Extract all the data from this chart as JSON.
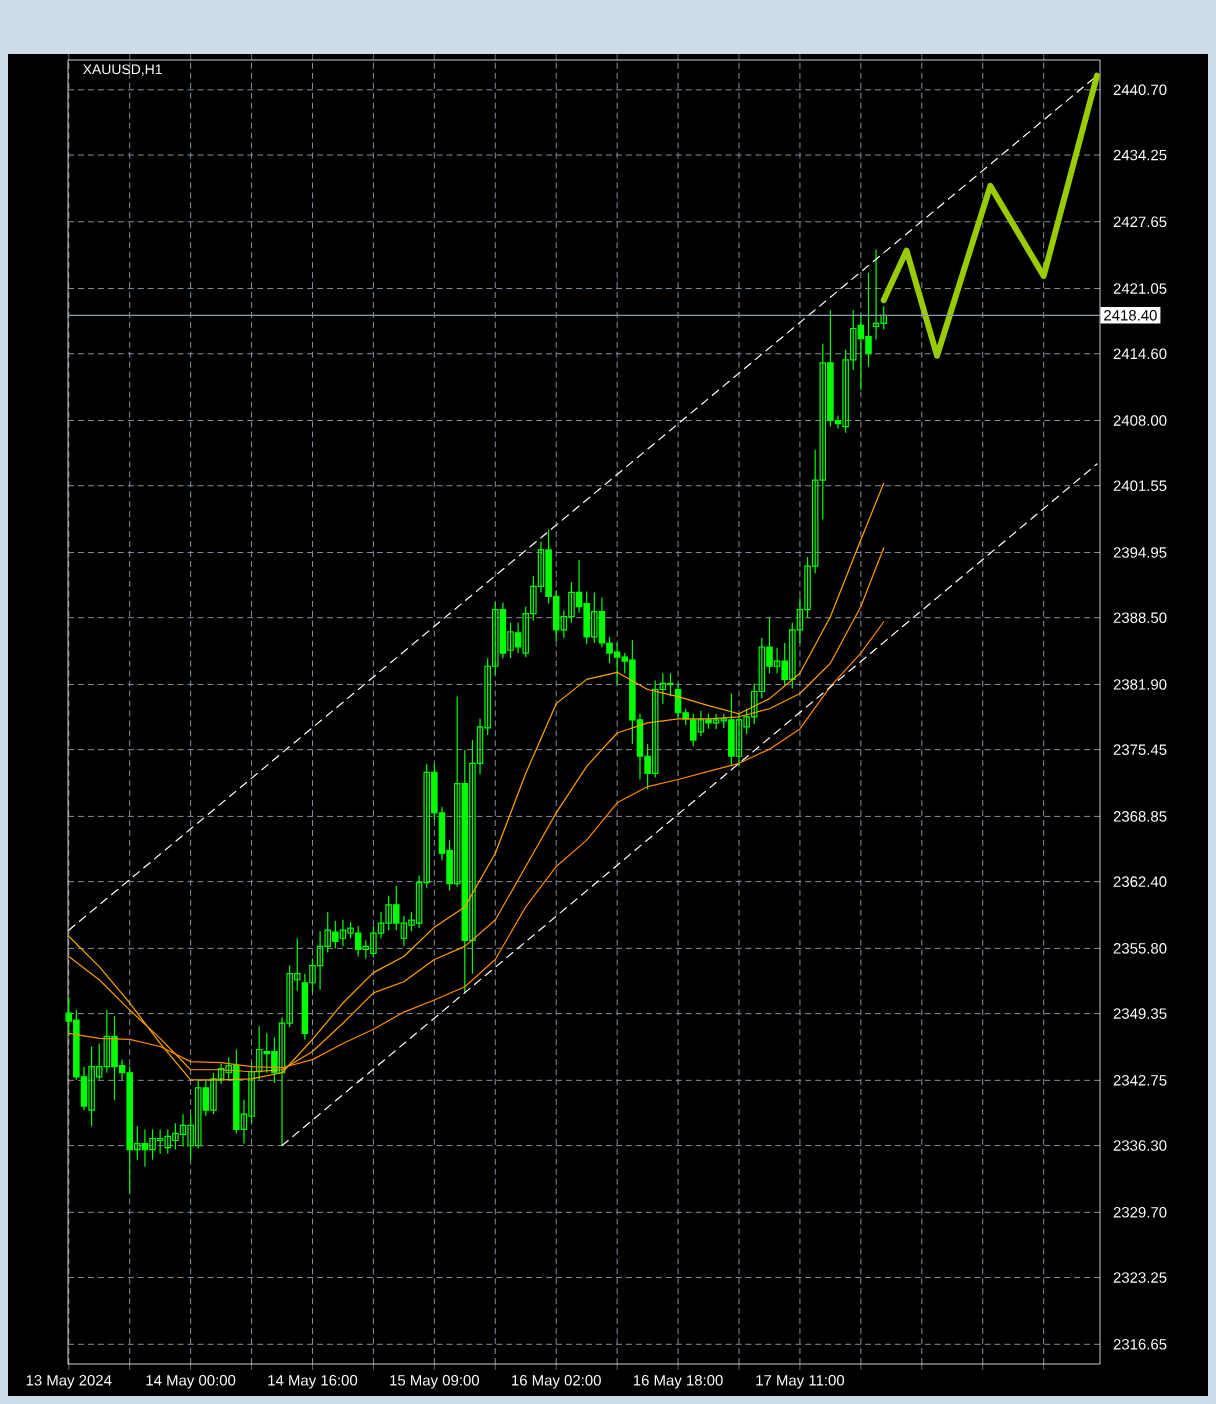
{
  "chart_data": {
    "type": "candlestick",
    "title": "XAUUSD,H1",
    "categories": [
      "13 May 2024",
      null,
      null,
      null,
      null,
      null,
      null,
      null,
      null,
      null,
      null,
      null,
      null,
      null,
      null,
      null,
      "14 May 00:00",
      null,
      null,
      null,
      null,
      null,
      null,
      null,
      null,
      null,
      null,
      null,
      null,
      null,
      null,
      null,
      "14 May 16:00",
      null,
      null,
      null,
      null,
      null,
      null,
      null,
      null,
      null,
      null,
      null,
      null,
      null,
      null,
      null,
      "15 May 09:00",
      null,
      null,
      null,
      null,
      null,
      null,
      null,
      null,
      null,
      null,
      null,
      null,
      null,
      null,
      null,
      "16 May 02:00",
      null,
      null,
      null,
      null,
      null,
      null,
      null,
      null,
      null,
      null,
      null,
      null,
      null,
      null,
      null,
      "16 May 18:00",
      null,
      null,
      null,
      null,
      null,
      null,
      null,
      null,
      null,
      null,
      null,
      null,
      null,
      null,
      null,
      "17 May 11:00",
      null,
      null,
      null,
      null,
      null,
      null,
      null,
      null,
      null,
      null,
      null,
      null,
      null,
      null,
      null,
      null,
      null,
      null,
      null,
      null,
      null,
      null,
      null,
      null,
      null,
      null,
      null,
      null,
      null,
      null,
      null,
      null,
      null,
      null,
      null,
      null,
      null,
      null,
      null
    ],
    "ylim": [
      2314.7,
      2443.65
    ],
    "yticks": [
      {
        "value": 2316.65,
        "label": "2316.65"
      },
      {
        "value": 2323.25,
        "label": "2323.25"
      },
      {
        "value": 2329.7,
        "label": "2329.70"
      },
      {
        "value": 2336.3,
        "label": "2336.30"
      },
      {
        "value": 2342.75,
        "label": "2342.75"
      },
      {
        "value": 2349.35,
        "label": "2349.35"
      },
      {
        "value": 2355.8,
        "label": "2355.80"
      },
      {
        "value": 2362.4,
        "label": "2362.40"
      },
      {
        "value": 2368.85,
        "label": "2368.85"
      },
      {
        "value": 2375.45,
        "label": "2375.45"
      },
      {
        "value": 2381.9,
        "label": "2381.90"
      },
      {
        "value": 2388.5,
        "label": "2388.50"
      },
      {
        "value": 2394.95,
        "label": "2394.95"
      },
      {
        "value": 2401.55,
        "label": "2401.55"
      },
      {
        "value": 2408.0,
        "label": "2408.00"
      },
      {
        "value": 2414.6,
        "label": "2414.60"
      },
      {
        "value": 2421.05,
        "label": "2421.05"
      },
      {
        "value": 2427.65,
        "label": "2427.65"
      },
      {
        "value": 2434.25,
        "label": "2434.25"
      },
      {
        "value": 2440.7,
        "label": "2440.70"
      }
    ],
    "grid": true,
    "ref_lines": [
      {
        "axis": "y",
        "value": 2418.4,
        "label": "2418.40",
        "color": "#8c9cac"
      }
    ],
    "series": [
      {
        "color": "#00ff00",
        "ohlc": [
          [
            2349.4,
            2351.0,
            2347.1,
            2348.6
          ],
          [
            2348.7,
            2349.7,
            2342.8,
            2343.1
          ],
          [
            2343.1,
            2344.1,
            2339.8,
            2340.2
          ],
          [
            2339.8,
            2346.1,
            2338.2,
            2344.1
          ],
          [
            2343.1,
            2346.4,
            2342.8,
            2344.1
          ],
          [
            2344.1,
            2349.7,
            2343.5,
            2347.1
          ],
          [
            2347.1,
            2349.1,
            2340.8,
            2344.1
          ],
          [
            2344.2,
            2344.8,
            2342.8,
            2343.5
          ],
          [
            2343.5,
            2344.1,
            2331.6,
            2335.9
          ],
          [
            2335.9,
            2338.2,
            2334.9,
            2336.5
          ],
          [
            2336.5,
            2337.9,
            2334.2,
            2335.9
          ],
          [
            2335.9,
            2337.9,
            2334.9,
            2337.0
          ],
          [
            2336.8,
            2337.9,
            2335.5,
            2337.0
          ],
          [
            2336.1,
            2337.9,
            2335.5,
            2337.2
          ],
          [
            2336.8,
            2338.5,
            2335.9,
            2337.5
          ],
          [
            2337.4,
            2339.4,
            2336.2,
            2338.3
          ],
          [
            2336.3,
            2339.4,
            2334.9,
            2338.3
          ],
          [
            2336.3,
            2342.8,
            2336.0,
            2342.0
          ],
          [
            2342.0,
            2342.8,
            2339.2,
            2339.8
          ],
          [
            2339.8,
            2343.5,
            2339.4,
            2342.9
          ],
          [
            2342.9,
            2344.4,
            2342.4,
            2343.9
          ],
          [
            2343.5,
            2345.0,
            2342.8,
            2344.2
          ],
          [
            2344.2,
            2345.8,
            2337.5,
            2337.9
          ],
          [
            2337.9,
            2340.8,
            2336.5,
            2339.4
          ],
          [
            2339.2,
            2344.4,
            2338.5,
            2343.6
          ],
          [
            2343.6,
            2348.1,
            2342.8,
            2345.8
          ],
          [
            2345.6,
            2347.4,
            2343.5,
            2345.4
          ],
          [
            2345.6,
            2347.0,
            2342.5,
            2343.5
          ],
          [
            2343.5,
            2349.0,
            2336.3,
            2348.4
          ],
          [
            2348.4,
            2354.1,
            2348.0,
            2353.3
          ],
          [
            2352.7,
            2356.8,
            2351.6,
            2353.3
          ],
          [
            2352.4,
            2353.3,
            2346.8,
            2347.4
          ],
          [
            2352.4,
            2354.8,
            2351.5,
            2354.1
          ],
          [
            2354.1,
            2357.5,
            2351.7,
            2356.0
          ],
          [
            2356.0,
            2359.4,
            2355.4,
            2357.6
          ],
          [
            2357.4,
            2358.5,
            2355.8,
            2356.5
          ],
          [
            2356.8,
            2358.6,
            2356.0,
            2357.6
          ],
          [
            2357.3,
            2358.4,
            2356.8,
            2357.8
          ],
          [
            2357.3,
            2358.0,
            2355.0,
            2355.7
          ],
          [
            2355.7,
            2356.6,
            2354.8,
            2356.0
          ],
          [
            2355.3,
            2358.0,
            2354.9,
            2357.3
          ],
          [
            2357.3,
            2359.4,
            2356.8,
            2358.3
          ],
          [
            2358.3,
            2361.0,
            2357.6,
            2360.1
          ],
          [
            2360.1,
            2362.0,
            2357.6,
            2358.3
          ],
          [
            2356.8,
            2359.0,
            2356.0,
            2358.3
          ],
          [
            2358.1,
            2359.4,
            2357.5,
            2358.6
          ],
          [
            2358.3,
            2363.0,
            2357.8,
            2362.3
          ],
          [
            2362.3,
            2374.0,
            2361.8,
            2373.2
          ],
          [
            2373.2,
            2374.0,
            2368.5,
            2369.2
          ],
          [
            2369.2,
            2369.8,
            2364.5,
            2365.2
          ],
          [
            2365.5,
            2366.5,
            2361.5,
            2362.2
          ],
          [
            2362.2,
            2380.7,
            2361.9,
            2372.1
          ],
          [
            2372.1,
            2375.4,
            2351.4,
            2356.6
          ],
          [
            2356.6,
            2376.4,
            2353.3,
            2374.1
          ],
          [
            2374.1,
            2378.5,
            2373.0,
            2377.7
          ],
          [
            2377.6,
            2384.5,
            2376.9,
            2383.7
          ],
          [
            2383.7,
            2390.0,
            2382.9,
            2389.3
          ],
          [
            2389.3,
            2390.0,
            2384.5,
            2385.0
          ],
          [
            2385.3,
            2388.0,
            2384.5,
            2387.1
          ],
          [
            2387.0,
            2388.0,
            2385.0,
            2385.6
          ],
          [
            2385.0,
            2389.6,
            2384.6,
            2388.9
          ],
          [
            2388.9,
            2392.6,
            2388.2,
            2391.6
          ],
          [
            2391.6,
            2396.0,
            2391.0,
            2395.2
          ],
          [
            2395.2,
            2397.2,
            2389.9,
            2390.6
          ],
          [
            2390.6,
            2391.2,
            2386.2,
            2387.3
          ],
          [
            2387.3,
            2389.2,
            2386.5,
            2388.6
          ],
          [
            2388.6,
            2392.0,
            2388.0,
            2391.0
          ],
          [
            2391.0,
            2394.2,
            2389.0,
            2389.6
          ],
          [
            2389.9,
            2391.1,
            2385.9,
            2386.6
          ],
          [
            2386.6,
            2391.0,
            2386.0,
            2389.1
          ],
          [
            2389.1,
            2390.5,
            2385.6,
            2386.0
          ],
          [
            2386.0,
            2386.6,
            2384.0,
            2385.0
          ],
          [
            2385.1,
            2386.0,
            2382.0,
            2384.6
          ],
          [
            2384.6,
            2385.0,
            2383.0,
            2384.2
          ],
          [
            2384.3,
            2386.3,
            2376.0,
            2378.4
          ],
          [
            2378.4,
            2379.0,
            2372.5,
            2374.8
          ],
          [
            2374.8,
            2376.0,
            2371.5,
            2373.1
          ],
          [
            2373.1,
            2382.3,
            2372.7,
            2381.4
          ],
          [
            2381.4,
            2383.0,
            2380.0,
            2382.0
          ],
          [
            2381.9,
            2383.0,
            2380.7,
            2382.0
          ],
          [
            2381.4,
            2382.0,
            2378.5,
            2379.1
          ],
          [
            2379.1,
            2379.5,
            2377.9,
            2378.5
          ],
          [
            2378.4,
            2379.0,
            2375.8,
            2376.4
          ],
          [
            2377.2,
            2379.3,
            2376.8,
            2378.4
          ],
          [
            2378.4,
            2379.0,
            2377.5,
            2378.1
          ],
          [
            2378.1,
            2379.0,
            2377.5,
            2378.4
          ],
          [
            2378.3,
            2379.0,
            2377.6,
            2378.5
          ],
          [
            2378.4,
            2381.0,
            2373.8,
            2374.8
          ],
          [
            2374.8,
            2379.0,
            2373.8,
            2378.4
          ],
          [
            2377.7,
            2379.5,
            2377.0,
            2378.7
          ],
          [
            2378.7,
            2382.0,
            2378.0,
            2381.2
          ],
          [
            2381.2,
            2386.5,
            2380.5,
            2385.6
          ],
          [
            2385.6,
            2388.5,
            2383.0,
            2383.7
          ],
          [
            2383.7,
            2385.5,
            2383.0,
            2384.2
          ],
          [
            2384.2,
            2386.0,
            2381.8,
            2382.4
          ],
          [
            2382.4,
            2388.0,
            2381.5,
            2387.3
          ],
          [
            2387.3,
            2390.5,
            2386.0,
            2389.3
          ],
          [
            2389.3,
            2394.5,
            2388.5,
            2393.6
          ],
          [
            2393.6,
            2405.1,
            2392.9,
            2402.1
          ],
          [
            2402.1,
            2415.6,
            2398.2,
            2413.7
          ],
          [
            2413.7,
            2418.9,
            2407.4,
            2408.0
          ],
          [
            2408.0,
            2408.5,
            2407.2,
            2407.7
          ],
          [
            2407.4,
            2415.0,
            2406.8,
            2414.0
          ],
          [
            2414.0,
            2418.9,
            2413.0,
            2417.1
          ],
          [
            2417.4,
            2418.5,
            2411.0,
            2416.1
          ],
          [
            2416.3,
            2422.6,
            2413.3,
            2414.6
          ],
          [
            2417.3,
            2424.9,
            2416.0,
            2417.6
          ],
          [
            2417.6,
            2419.3,
            2417.0,
            2418.4
          ],
          null,
          null,
          null,
          null,
          null,
          null,
          null,
          null,
          null,
          null,
          null,
          null,
          null,
          null,
          null,
          null,
          null,
          null,
          null,
          null,
          null,
          null,
          null,
          null,
          null,
          null,
          null,
          null
        ]
      },
      {
        "type": "line",
        "color": "#ffa500",
        "values": [
          2357.0,
          null,
          null,
          null,
          2354.0,
          null,
          null,
          null,
          2350.4,
          null,
          null,
          null,
          2346.4,
          null,
          null,
          null,
          2342.8,
          null,
          null,
          null,
          2342.8,
          null,
          null,
          null,
          2342.9,
          null,
          null,
          null,
          2343.5,
          null,
          null,
          null,
          2346.8,
          null,
          null,
          null,
          2350.4,
          null,
          null,
          null,
          2353.4,
          null,
          null,
          null,
          2355.0,
          null,
          null,
          null,
          2357.9,
          null,
          null,
          null,
          2359.9,
          null,
          null,
          null,
          2365.2,
          null,
          null,
          null,
          2373.1,
          null,
          null,
          null,
          2380.0,
          null,
          null,
          null,
          2382.4,
          null,
          null,
          null,
          2383.1,
          null,
          null,
          null,
          2381.4,
          null,
          null,
          null,
          2380.7,
          null,
          null,
          null,
          2379.8,
          null,
          null,
          null,
          2379.0,
          null,
          null,
          null,
          2380.5,
          null,
          null,
          null,
          2383.0,
          null,
          null,
          null,
          2388.6,
          null,
          null,
          null,
          2396.2,
          null,
          null,
          2401.8,
          null,
          null,
          null,
          null,
          null,
          null,
          null,
          null,
          null,
          null,
          null,
          null,
          null,
          null,
          null,
          null,
          null,
          null,
          null,
          null,
          null,
          null,
          null,
          null,
          null,
          null,
          null,
          null
        ]
      },
      {
        "type": "line",
        "color": "#ff9900",
        "values": [
          2355.0,
          null,
          null,
          null,
          2352.7,
          null,
          null,
          null,
          2349.7,
          null,
          null,
          null,
          2346.9,
          null,
          null,
          null,
          2343.8,
          null,
          null,
          null,
          2343.8,
          null,
          null,
          null,
          2343.6,
          null,
          null,
          null,
          2343.8,
          null,
          null,
          null,
          2345.6,
          null,
          null,
          null,
          2348.4,
          null,
          null,
          null,
          2351.4,
          null,
          null,
          null,
          2352.5,
          null,
          null,
          null,
          2354.7,
          null,
          null,
          null,
          2356.0,
          null,
          null,
          null,
          2358.6,
          null,
          null,
          null,
          2363.9,
          null,
          null,
          null,
          2369.2,
          null,
          null,
          null,
          2373.8,
          null,
          null,
          null,
          2377.1,
          null,
          null,
          null,
          2378.1,
          null,
          null,
          null,
          2378.5,
          null,
          null,
          null,
          2378.5,
          null,
          null,
          null,
          2378.7,
          null,
          null,
          null,
          2379.5,
          null,
          null,
          null,
          2381.0,
          null,
          null,
          null,
          2384.0,
          null,
          null,
          null,
          2389.6,
          null,
          null,
          2395.4,
          null,
          null,
          null,
          null,
          null,
          null,
          null,
          null,
          null,
          null,
          null,
          null,
          null,
          null,
          null,
          null,
          null,
          null,
          null,
          null,
          null,
          null,
          null,
          null,
          null,
          null,
          null,
          null
        ]
      },
      {
        "type": "line",
        "color": "#ff8800",
        "values": [
          2347.4,
          null,
          null,
          null,
          2346.9,
          null,
          null,
          null,
          2346.8,
          null,
          null,
          null,
          2346.1,
          null,
          null,
          null,
          2344.6,
          null,
          null,
          null,
          2344.5,
          null,
          null,
          null,
          2344.1,
          null,
          null,
          null,
          2344.0,
          null,
          null,
          null,
          2344.8,
          null,
          null,
          null,
          2346.4,
          null,
          null,
          null,
          2347.8,
          null,
          null,
          null,
          2349.5,
          null,
          null,
          null,
          2350.7,
          null,
          null,
          null,
          2352.0,
          null,
          null,
          null,
          2354.7,
          null,
          null,
          null,
          2359.9,
          null,
          null,
          null,
          2363.9,
          null,
          null,
          null,
          2366.5,
          null,
          null,
          null,
          2370.2,
          null,
          null,
          null,
          2371.8,
          null,
          null,
          null,
          2372.5,
          null,
          null,
          null,
          2373.3,
          null,
          null,
          null,
          2374.1,
          null,
          null,
          null,
          2375.5,
          null,
          null,
          null,
          2377.5,
          null,
          null,
          null,
          2381.7,
          null,
          null,
          null,
          2385.0,
          null,
          null,
          2388.1,
          null,
          null,
          null,
          null,
          null,
          null,
          null,
          null,
          null,
          null,
          null,
          null,
          null,
          null,
          null,
          null,
          null,
          null,
          null,
          null,
          null,
          null,
          null,
          null,
          null,
          null,
          null,
          null
        ]
      },
      {
        "type": "line",
        "color": "#ffffff",
        "line_style": "dashed",
        "values": [
          2357.6,
          null,
          null,
          null,
          null,
          null,
          null,
          null,
          null,
          null,
          null,
          null,
          null,
          null,
          null,
          null,
          null,
          null,
          null,
          null,
          null,
          null,
          null,
          null,
          null,
          null,
          null,
          null,
          null,
          null,
          null,
          null,
          null,
          null,
          null,
          null,
          null,
          null,
          null,
          null,
          null,
          null,
          null,
          null,
          null,
          null,
          null,
          null,
          null,
          null,
          null,
          null,
          null,
          null,
          null,
          null,
          null,
          null,
          null,
          null,
          null,
          null,
          null,
          null,
          null,
          null,
          null,
          null,
          null,
          null,
          null,
          null,
          null,
          null,
          null,
          null,
          null,
          null,
          null,
          null,
          null,
          null,
          null,
          null,
          null,
          null,
          null,
          null,
          null,
          null,
          null,
          null,
          null,
          null,
          null,
          null,
          null,
          null,
          null,
          null,
          null,
          null,
          null,
          null,
          null,
          null,
          null,
          null,
          null,
          null,
          null,
          null,
          null,
          null,
          null,
          null,
          null,
          null,
          null,
          null,
          null,
          null,
          null,
          null,
          null,
          null,
          null,
          null,
          null,
          null,
          null,
          null,
          null,
          null,
          null,
          2442.1
        ]
      },
      {
        "type": "line",
        "color": "#ffffff",
        "line_style": "dashed",
        "values": [
          null,
          null,
          null,
          null,
          null,
          null,
          null,
          null,
          null,
          null,
          null,
          null,
          null,
          null,
          null,
          null,
          null,
          null,
          null,
          null,
          null,
          null,
          null,
          null,
          null,
          null,
          null,
          null,
          2336.3,
          null,
          null,
          null,
          null,
          null,
          null,
          null,
          null,
          null,
          null,
          null,
          null,
          null,
          null,
          null,
          null,
          null,
          null,
          null,
          null,
          null,
          null,
          null,
          null,
          null,
          null,
          null,
          null,
          null,
          null,
          null,
          null,
          null,
          null,
          null,
          null,
          null,
          null,
          null,
          null,
          null,
          null,
          null,
          null,
          null,
          null,
          null,
          null,
          null,
          null,
          null,
          null,
          null,
          null,
          null,
          null,
          null,
          null,
          null,
          null,
          null,
          null,
          null,
          null,
          null,
          null,
          null,
          null,
          null,
          null,
          null,
          null,
          null,
          null,
          null,
          null,
          null,
          null,
          null,
          null,
          null,
          null,
          null,
          null,
          null,
          null,
          null,
          null,
          null,
          null,
          null,
          null,
          null,
          null,
          null,
          null,
          null,
          null,
          null,
          null,
          null,
          null,
          null,
          null,
          null,
          null,
          2403.7
        ]
      },
      {
        "type": "line",
        "color": "#99cc00",
        "line_style": "solid",
        "values": [
          null,
          null,
          null,
          null,
          null,
          null,
          null,
          null,
          null,
          null,
          null,
          null,
          null,
          null,
          null,
          null,
          null,
          null,
          null,
          null,
          null,
          null,
          null,
          null,
          null,
          null,
          null,
          null,
          null,
          null,
          null,
          null,
          null,
          null,
          null,
          null,
          null,
          null,
          null,
          null,
          null,
          null,
          null,
          null,
          null,
          null,
          null,
          null,
          null,
          null,
          null,
          null,
          null,
          null,
          null,
          null,
          null,
          null,
          null,
          null,
          null,
          null,
          null,
          null,
          null,
          null,
          null,
          null,
          null,
          null,
          null,
          null,
          null,
          null,
          null,
          null,
          null,
          null,
          null,
          null,
          null,
          null,
          null,
          null,
          null,
          null,
          null,
          null,
          null,
          null,
          null,
          null,
          null,
          null,
          null,
          null,
          null,
          null,
          null,
          null,
          null,
          null,
          null,
          null,
          null,
          null,
          null,
          2419.9,
          null,
          null,
          2424.8,
          null,
          null,
          null,
          2414.4,
          null,
          null,
          null,
          null,
          null,
          null,
          2431.2,
          null,
          null,
          null,
          null,
          null,
          null,
          2422.3,
          null,
          null,
          null,
          null,
          null,
          null,
          2442.1
        ]
      }
    ]
  }
}
